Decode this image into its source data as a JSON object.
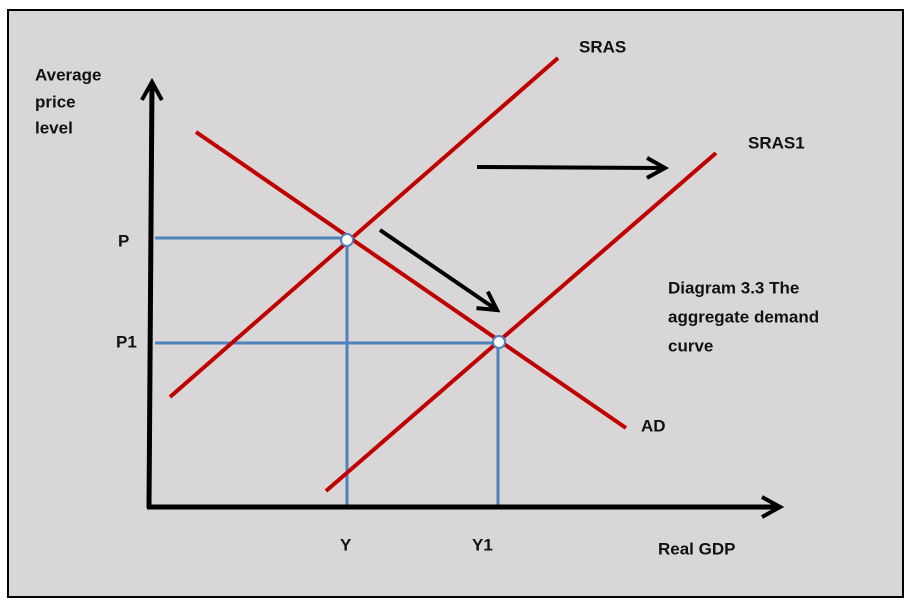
{
  "axes": {
    "y_label": [
      "Average",
      "price",
      "level"
    ],
    "x_label": "Real GDP"
  },
  "curves": {
    "sras": "SRAS",
    "sras1": "SRAS1",
    "ad": "AD"
  },
  "levels": {
    "price": [
      "P",
      "P1"
    ],
    "output": [
      "Y",
      "Y1"
    ]
  },
  "caption": [
    "Diagram 3.3 The",
    "aggregate demand",
    "curve"
  ]
}
